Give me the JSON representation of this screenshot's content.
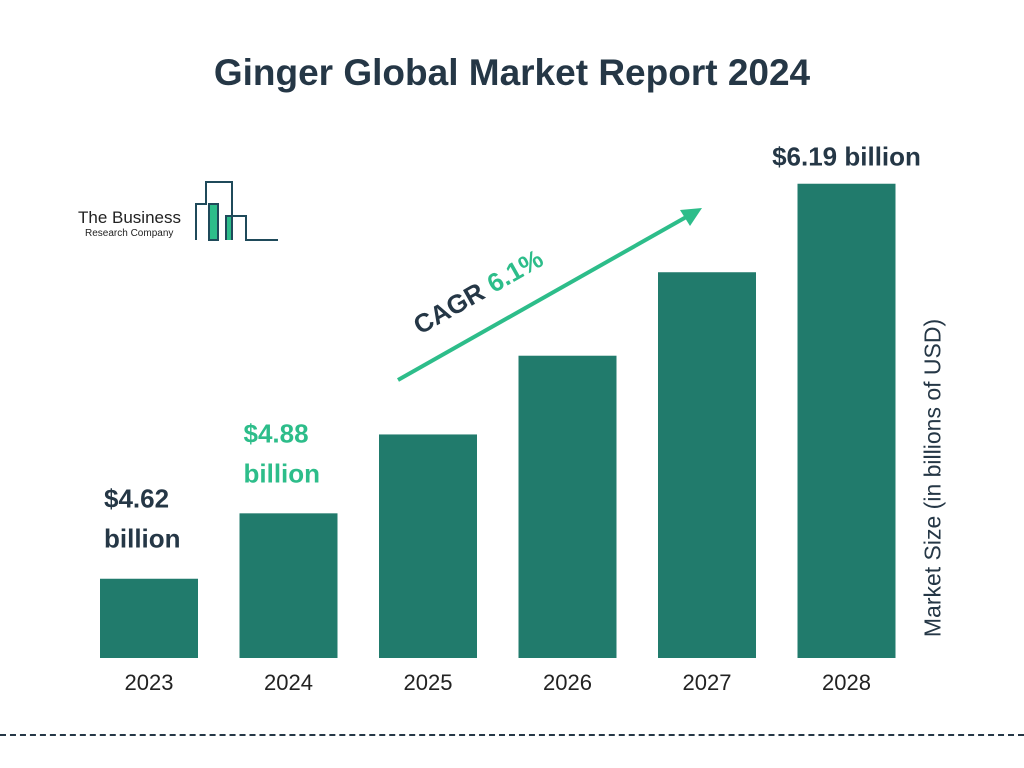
{
  "chart_data": {
    "type": "bar",
    "title": "Ginger Global Market Report 2024",
    "ylabel": "Market Size (in billions of USD)",
    "xlabel": "",
    "categories": [
      "2023",
      "2024",
      "2025",
      "2026",
      "2027",
      "2028"
    ],
    "values": [
      4.62,
      4.88,
      null,
      null,
      null,
      6.19
    ],
    "data_labels": [
      {
        "category": "2023",
        "lines": [
          "$4.62",
          "billion"
        ],
        "color": "#253746"
      },
      {
        "category": "2024",
        "lines": [
          "$4.88",
          "billion"
        ],
        "color": "#2dbd8a"
      },
      {
        "category": "2028",
        "lines": [
          "$6.19 billion"
        ],
        "color": "#253746"
      }
    ],
    "annotation": {
      "prefix": "CAGR",
      "value": "6.1%",
      "prefix_color": "#253746",
      "value_color": "#2dbd8a"
    },
    "bar_color": "#217b6c",
    "grid": false,
    "legend": "none"
  },
  "logo": {
    "line1": "The Business",
    "line2": "Research Company",
    "colors": {
      "outline": "#1f4a5a",
      "fill": "#2dbd8a"
    }
  }
}
